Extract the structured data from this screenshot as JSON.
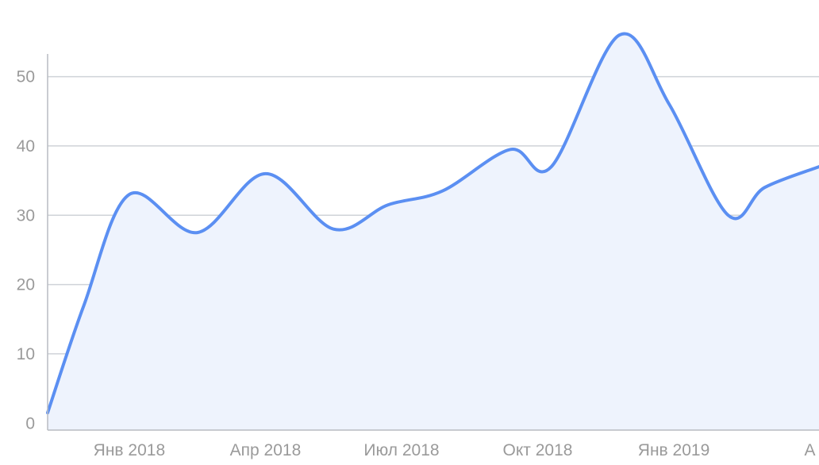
{
  "chart_data": {
    "type": "area",
    "title": "",
    "xlabel": "",
    "ylabel": "",
    "grid": true,
    "legend": "none",
    "colors": {
      "line": "#5b8ff2",
      "fill": "#eef3fd",
      "grid": "#cfd3d8",
      "text": "#9a9a9a"
    },
    "y_ticks": [
      0,
      10,
      20,
      30,
      40,
      50
    ],
    "ylim": [
      -1,
      59
    ],
    "x_ticks": [
      "Янв 2018",
      "Апр 2018",
      "Июл 2018",
      "Окт 2018",
      "Янв 2019",
      "А"
    ],
    "x_tick_index": [
      1,
      4,
      7,
      10,
      13,
      16
    ],
    "xlim": [
      -0.8,
      16.2
    ],
    "series": [
      {
        "values": [
          {
            "x": -0.8,
            "y": 1.5
          },
          {
            "x": 0.0,
            "y": 17.0
          },
          {
            "x": 1.0,
            "y": 33.0
          },
          {
            "x": 2.5,
            "y": 27.5
          },
          {
            "x": 4.0,
            "y": 36.0
          },
          {
            "x": 5.5,
            "y": 28.0
          },
          {
            "x": 6.7,
            "y": 31.5
          },
          {
            "x": 7.9,
            "y": 33.5
          },
          {
            "x": 9.4,
            "y": 39.5
          },
          {
            "x": 10.3,
            "y": 37.0
          },
          {
            "x": 11.8,
            "y": 56.0
          },
          {
            "x": 12.9,
            "y": 46.0
          },
          {
            "x": 14.2,
            "y": 30.0
          },
          {
            "x": 15.0,
            "y": 34.0
          },
          {
            "x": 16.2,
            "y": 37.0
          }
        ]
      }
    ]
  }
}
